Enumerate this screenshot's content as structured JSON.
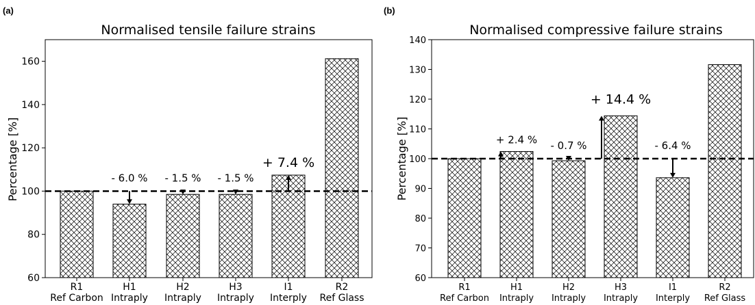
{
  "chart_data": [
    {
      "panel_label": "(a)",
      "type": "bar",
      "title": "Normalised tensile failure strains",
      "xlabel": "",
      "ylabel": "Percentage [%]",
      "ylim": [
        60,
        170
      ],
      "yticks": [
        60,
        80,
        100,
        120,
        140,
        160
      ],
      "categories": [
        {
          "code": "R1",
          "name": "Ref Carbon"
        },
        {
          "code": "H1",
          "name": "Intraply"
        },
        {
          "code": "H2",
          "name": "Intraply"
        },
        {
          "code": "H3",
          "name": "Intraply"
        },
        {
          "code": "I1",
          "name": "Interply"
        },
        {
          "code": "R2",
          "name": "Ref Glass"
        }
      ],
      "values": [
        100,
        94.0,
        98.5,
        98.5,
        107.4,
        161.2
      ],
      "reference_line": 100,
      "bar_pattern": "crosshatch",
      "grid": false,
      "annotations": [
        {
          "category": "H1",
          "text": "- 6.0 %",
          "direction": "down"
        },
        {
          "category": "H2",
          "text": "- 1.5 %",
          "direction": "down"
        },
        {
          "category": "H3",
          "text": "- 1.5 %",
          "direction": "down"
        },
        {
          "category": "I1",
          "text": "+ 7.4 %",
          "direction": "up",
          "emphasis": true
        }
      ]
    },
    {
      "panel_label": "(b)",
      "type": "bar",
      "title": "Normalised compressive failure strains",
      "xlabel": "",
      "ylabel": "Percentage [%]",
      "ylim": [
        60,
        140
      ],
      "yticks": [
        60,
        70,
        80,
        90,
        100,
        110,
        120,
        130,
        140
      ],
      "categories": [
        {
          "code": "R1",
          "name": "Ref Carbon"
        },
        {
          "code": "H1",
          "name": "Intraply"
        },
        {
          "code": "H2",
          "name": "Intraply"
        },
        {
          "code": "H3",
          "name": "Intraply"
        },
        {
          "code": "I1",
          "name": "Interply"
        },
        {
          "code": "R2",
          "name": "Ref Glass"
        }
      ],
      "values": [
        100,
        102.4,
        99.3,
        114.4,
        93.6,
        131.6
      ],
      "reference_line": 100,
      "bar_pattern": "crosshatch",
      "grid": false,
      "annotations": [
        {
          "category": "H1",
          "text": "+ 2.4 %",
          "direction": "up"
        },
        {
          "category": "H2",
          "text": "- 0.7 %",
          "direction": "down"
        },
        {
          "category": "H3",
          "text": "+ 14.4 %",
          "direction": "up",
          "emphasis": true
        },
        {
          "category": "I1",
          "text": "- 6.4 %",
          "direction": "down"
        }
      ]
    }
  ]
}
